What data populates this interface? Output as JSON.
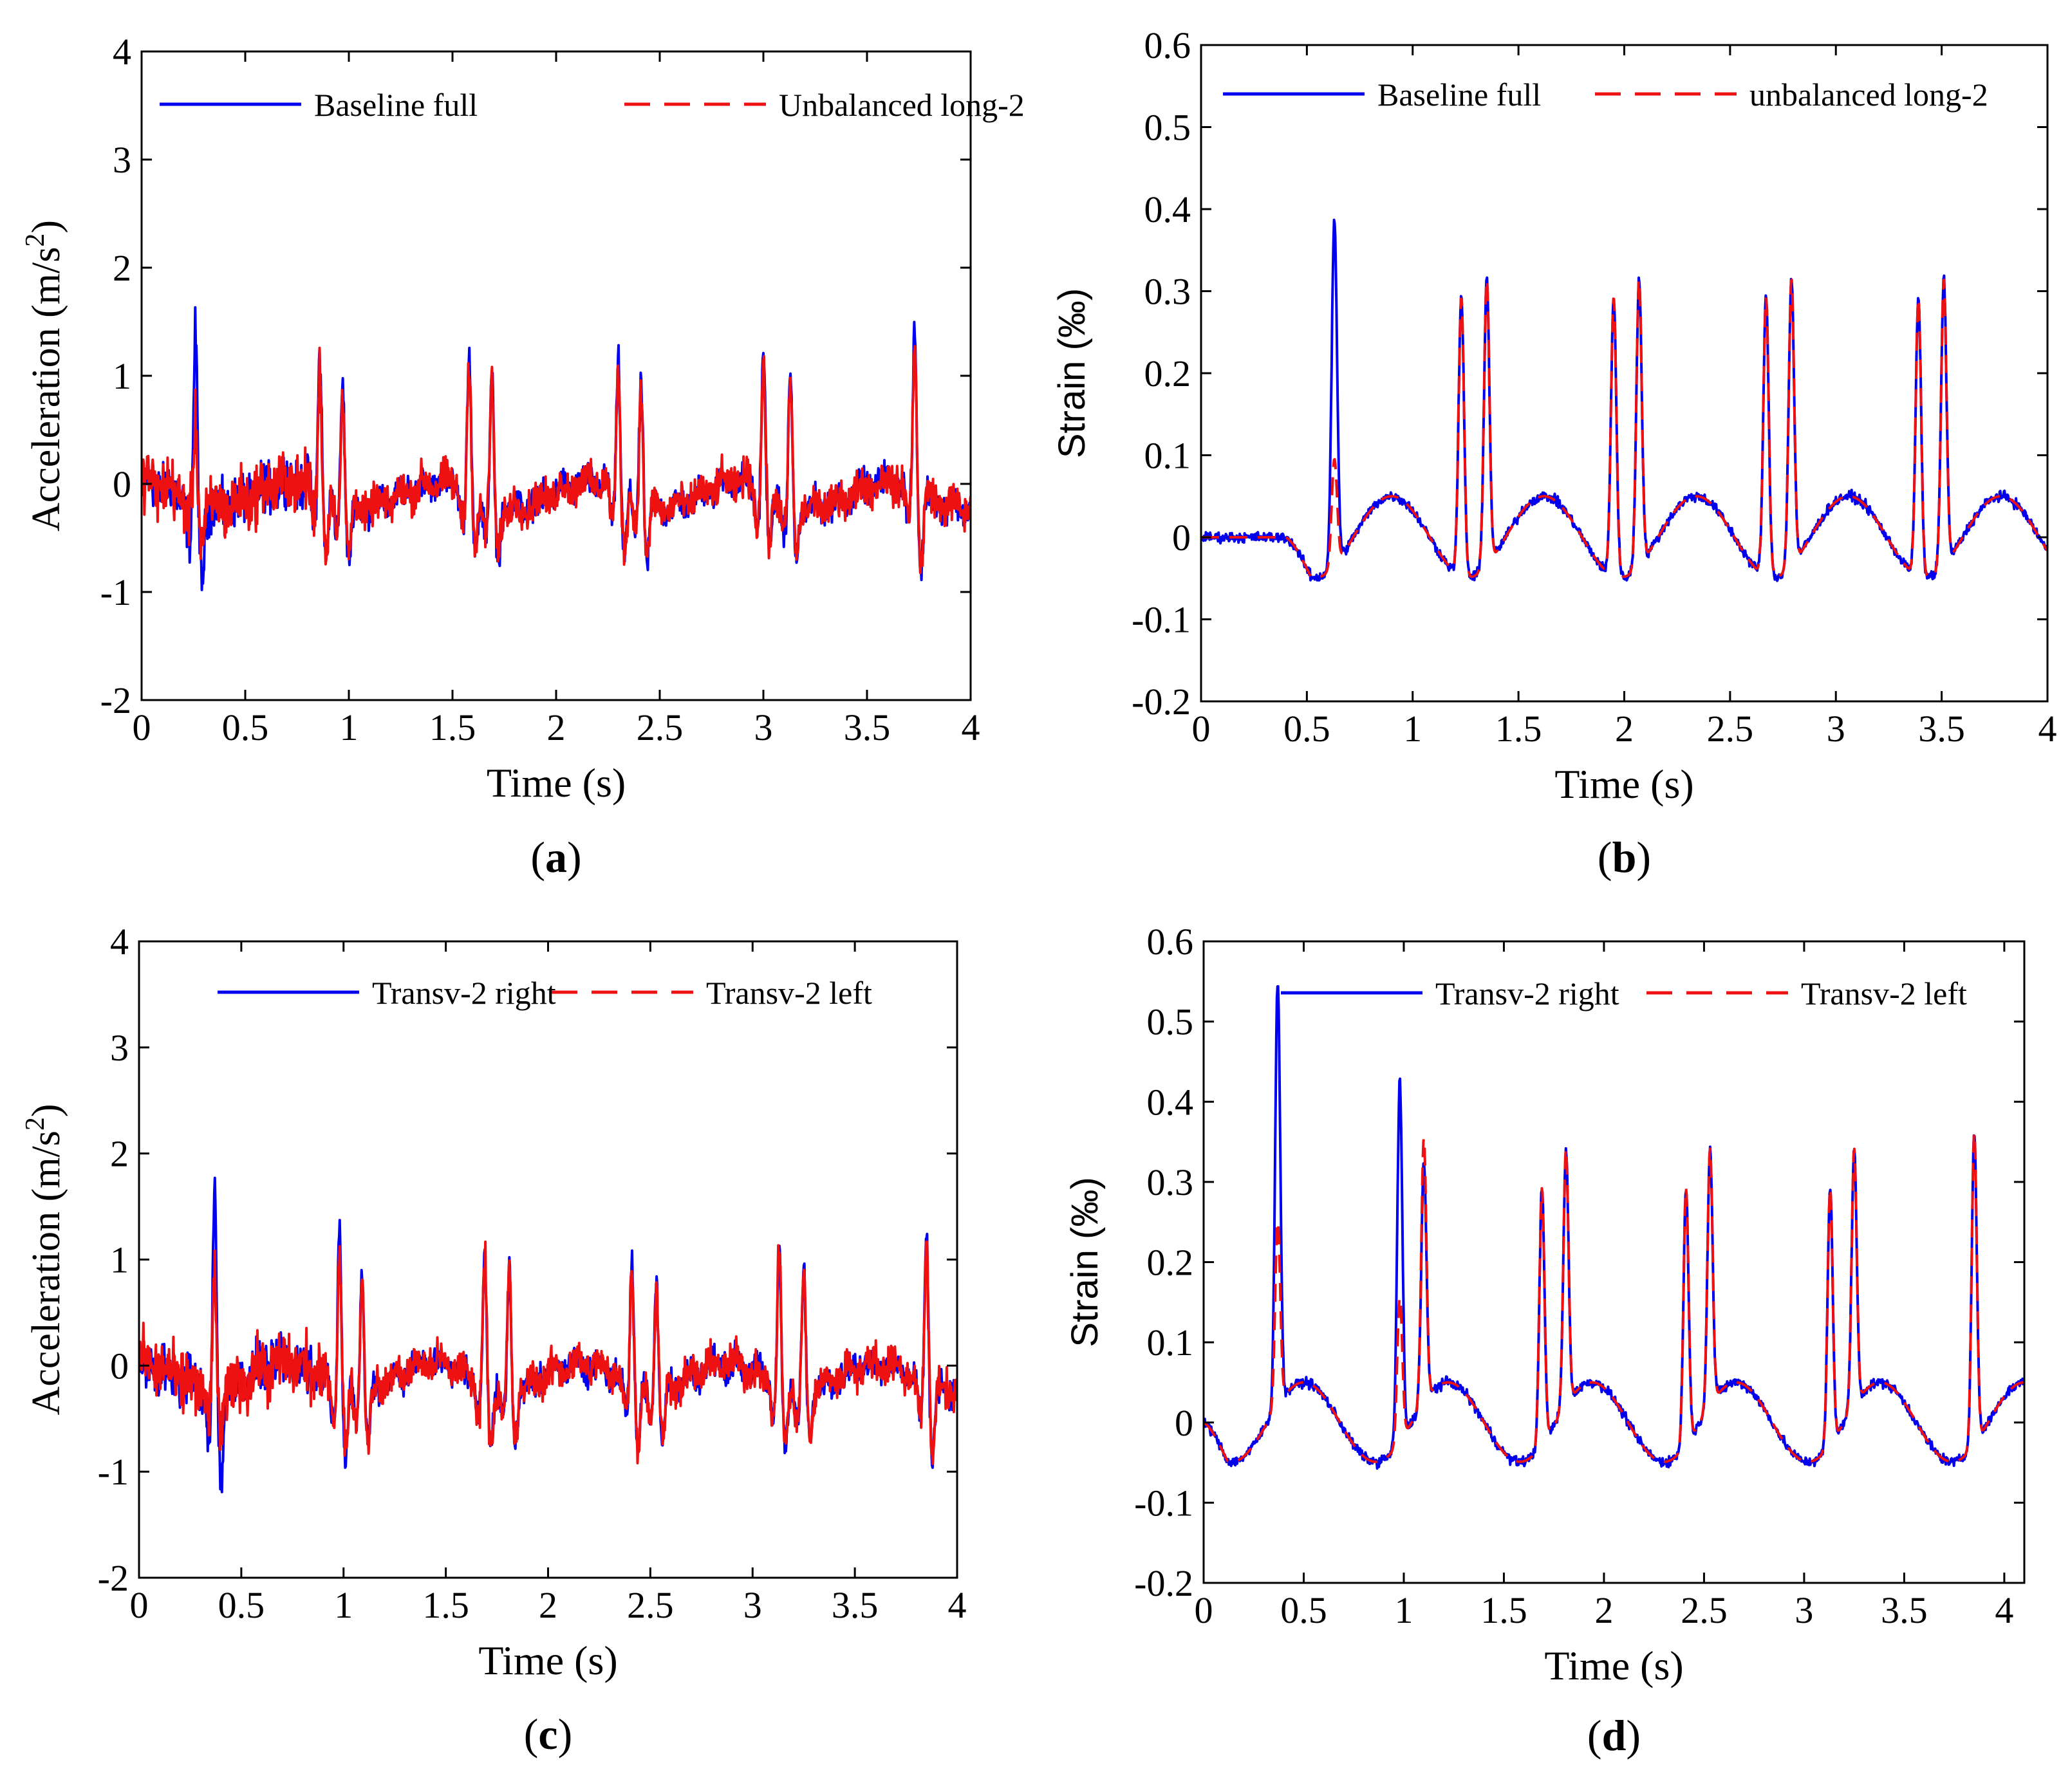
{
  "colors": {
    "series1": "#0000ee",
    "series2": "#ee1111",
    "axis": "#000000"
  },
  "chart_data": [
    {
      "panel": "(a)",
      "panel_label": "a",
      "type": "line",
      "kind": "accel",
      "xlabel": "Time (s)",
      "ylabel_main": "Acceleration (m/s",
      "ylabel_sup": "2",
      "ylabel_tail": ")",
      "xlim": [
        0,
        4
      ],
      "ylim": [
        -2,
        4
      ],
      "xticks": [
        0,
        0.5,
        1,
        1.5,
        2,
        2.5,
        3,
        3.5,
        4
      ],
      "xtick_labels": [
        "0",
        "0.5",
        "1",
        "1.5",
        "2",
        "2.5",
        "3",
        "3.5",
        "4"
      ],
      "yticks": [
        -2,
        -1,
        0,
        1,
        2,
        3,
        4
      ],
      "ytick_labels": [
        "-2",
        "-1",
        "0",
        "1",
        "2",
        "3",
        "4"
      ],
      "events": [
        [
          0.26,
          1.55,
          0.7
        ],
        [
          0.86,
          1.35,
          1.2
        ],
        [
          0.97,
          1.17,
          1.0
        ],
        [
          1.58,
          1.28,
          1.2
        ],
        [
          1.69,
          1.17,
          1.1
        ],
        [
          2.3,
          1.28,
          1.2
        ],
        [
          2.41,
          1.17,
          1.1
        ],
        [
          3.0,
          1.3,
          1.2
        ],
        [
          3.13,
          1.17,
          1.1
        ],
        [
          3.73,
          1.5,
          1.45
        ]
      ],
      "series": [
        {
          "name": "Baseline full",
          "style": "solid"
        },
        {
          "name": "Unbalanced long-2",
          "style": "dashed"
        }
      ]
    },
    {
      "panel": "(b)",
      "panel_label": "b",
      "type": "line",
      "kind": "strain",
      "xlabel": "Time (s)",
      "ylabel": "Strain (‰)",
      "xlim": [
        0,
        4
      ],
      "ylim": [
        -0.2,
        0.6
      ],
      "xticks": [
        0,
        0.5,
        1,
        1.5,
        2,
        2.5,
        3,
        3.5,
        4
      ],
      "xtick_labels": [
        "0",
        "0.5",
        "1",
        "1.5",
        "2",
        "2.5",
        "3",
        "3.5",
        "4"
      ],
      "yticks": [
        -0.2,
        -0.1,
        0,
        0.1,
        0.2,
        0.3,
        0.4,
        0.5,
        0.6
      ],
      "ytick_labels": [
        "-0.2",
        "-0.1",
        "0",
        "0.1",
        "0.2",
        "0.3",
        "0.4",
        "0.5",
        "0.6"
      ],
      "wave_start": 0.4,
      "wave_amp": 0.09,
      "events": [
        [
          0.63,
          0.42,
          0.13
        ],
        [
          1.23,
          0.34,
          0.34
        ],
        [
          1.35,
          0.35,
          0.35
        ],
        [
          1.95,
          0.34,
          0.34
        ],
        [
          2.07,
          0.35,
          0.35
        ],
        [
          2.67,
          0.34,
          0.34
        ],
        [
          2.79,
          0.35,
          0.35
        ],
        [
          3.39,
          0.34,
          0.34
        ],
        [
          3.51,
          0.35,
          0.35
        ]
      ],
      "series": [
        {
          "name": "Baseline full",
          "style": "solid"
        },
        {
          "name": "unbalanced long-2",
          "style": "dashed"
        }
      ]
    },
    {
      "panel": "(c)",
      "panel_label": "c",
      "type": "line",
      "kind": "accel",
      "xlabel": "Time (s)",
      "ylabel_main": "Acceleration (m/s",
      "ylabel_sup": "2",
      "ylabel_tail": ")",
      "xlim": [
        0,
        4
      ],
      "ylim": [
        -2,
        4
      ],
      "xticks": [
        0,
        0.5,
        1,
        1.5,
        2,
        2.5,
        3,
        3.5,
        4
      ],
      "xtick_labels": [
        "0",
        "0.5",
        "1",
        "1.5",
        "2",
        "2.5",
        "3",
        "3.5",
        "4"
      ],
      "yticks": [
        -2,
        -1,
        0,
        1,
        2,
        3,
        4
      ],
      "ytick_labels": [
        "-2",
        "-1",
        "0",
        "1",
        "2",
        "3",
        "4"
      ],
      "events": [
        [
          0.37,
          1.88,
          1.0
        ],
        [
          0.98,
          1.63,
          1.3
        ],
        [
          1.09,
          1.15,
          1.15
        ],
        [
          1.69,
          1.22,
          1.2
        ],
        [
          1.81,
          1.12,
          1.1
        ],
        [
          2.41,
          1.22,
          1.2
        ],
        [
          2.53,
          1.12,
          1.1
        ],
        [
          3.13,
          1.25,
          1.25
        ],
        [
          3.25,
          1.1,
          1.1
        ],
        [
          3.85,
          1.45,
          1.4
        ]
      ],
      "series": [
        {
          "name": "Transv-2 right",
          "style": "solid"
        },
        {
          "name": "Transv-2 left",
          "style": "dashed"
        }
      ]
    },
    {
      "panel": "(d)",
      "panel_label": "d",
      "type": "line",
      "kind": "strain",
      "xlabel": "Time (s)",
      "ylabel": "Strain (‰)",
      "xlim": [
        0,
        4.1
      ],
      "ylim": [
        -0.2,
        0.6
      ],
      "xticks": [
        0,
        0.5,
        1,
        1.5,
        2,
        2.5,
        3,
        3.5,
        4
      ],
      "xtick_labels": [
        "0",
        "0.5",
        "1",
        "1.5",
        "2",
        "2.5",
        "3",
        "3.5",
        "4"
      ],
      "yticks": [
        -0.2,
        -0.1,
        0,
        0.1,
        0.2,
        0.3,
        0.4,
        0.5,
        0.6
      ],
      "ytick_labels": [
        "-0.2",
        "-0.1",
        "0",
        "0.1",
        "0.2",
        "0.3",
        "0.4",
        "0.5",
        "0.6"
      ],
      "wave_start": 0.0,
      "wave_amp": 0.09,
      "events": [
        [
          0.37,
          0.53,
          0.23
        ],
        [
          0.98,
          0.45,
          0.18
        ],
        [
          1.1,
          0.3,
          0.33
        ],
        [
          1.69,
          0.32,
          0.32
        ],
        [
          1.81,
          0.32,
          0.32
        ],
        [
          2.41,
          0.32,
          0.32
        ],
        [
          2.53,
          0.32,
          0.32
        ],
        [
          3.13,
          0.32,
          0.32
        ],
        [
          3.25,
          0.32,
          0.32
        ],
        [
          3.85,
          0.39,
          0.39
        ]
      ],
      "series": [
        {
          "name": "Transv-2 right",
          "style": "solid"
        },
        {
          "name": "Transv-2 left",
          "style": "dashed"
        }
      ]
    }
  ]
}
